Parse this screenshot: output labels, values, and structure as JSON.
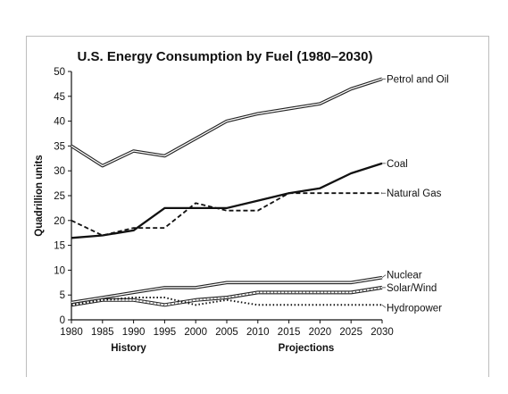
{
  "chart_data": {
    "type": "line",
    "title": "U.S. Energy Consumption by Fuel (1980–2030)",
    "xlabel": "",
    "ylabel": "Quadrillion units",
    "x": [
      1980,
      1985,
      1990,
      1995,
      2000,
      2005,
      2010,
      2015,
      2020,
      2025,
      2030
    ],
    "xlim": [
      1980,
      2030
    ],
    "ylim": [
      0,
      50
    ],
    "xticks": [
      "1980",
      "1985",
      "1990",
      "1995",
      "2000",
      "2005",
      "2010",
      "2015",
      "2020",
      "2025",
      "2030"
    ],
    "yticks": [
      "0",
      "5",
      "10",
      "15",
      "20",
      "25",
      "30",
      "35",
      "40",
      "45",
      "50"
    ],
    "period_labels": [
      "History",
      "Projections"
    ],
    "grid": false,
    "legend": "labels at line ends (right)",
    "series": [
      {
        "name": "Petrol and Oil",
        "style": "double",
        "values": [
          35,
          31,
          34,
          33,
          36.5,
          40,
          41.5,
          42.5,
          43.5,
          46.5,
          48.5
        ]
      },
      {
        "name": "Coal",
        "style": "solid",
        "values": [
          16.5,
          17,
          18,
          22.5,
          22.5,
          22.5,
          24,
          25.5,
          26.5,
          29.5,
          31.5
        ]
      },
      {
        "name": "Natural Gas",
        "style": "dashed",
        "values": [
          20,
          17,
          18.5,
          18.5,
          23.5,
          22,
          22,
          25.5,
          25.5,
          25.5,
          25.5
        ]
      },
      {
        "name": "Nuclear",
        "style": "double",
        "values": [
          3.5,
          4.5,
          5.5,
          6.5,
          6.5,
          7.5,
          7.5,
          7.5,
          7.5,
          7.5,
          8.5
        ]
      },
      {
        "name": "Solar/Wind",
        "style": "hatched",
        "values": [
          3,
          4,
          4,
          3,
          4,
          4.5,
          5.5,
          5.5,
          5.5,
          5.5,
          6.5
        ]
      },
      {
        "name": "Hydropower",
        "style": "dotted",
        "values": [
          3,
          4,
          4.5,
          4.5,
          3,
          4,
          3,
          3,
          3,
          3,
          3
        ]
      }
    ]
  }
}
